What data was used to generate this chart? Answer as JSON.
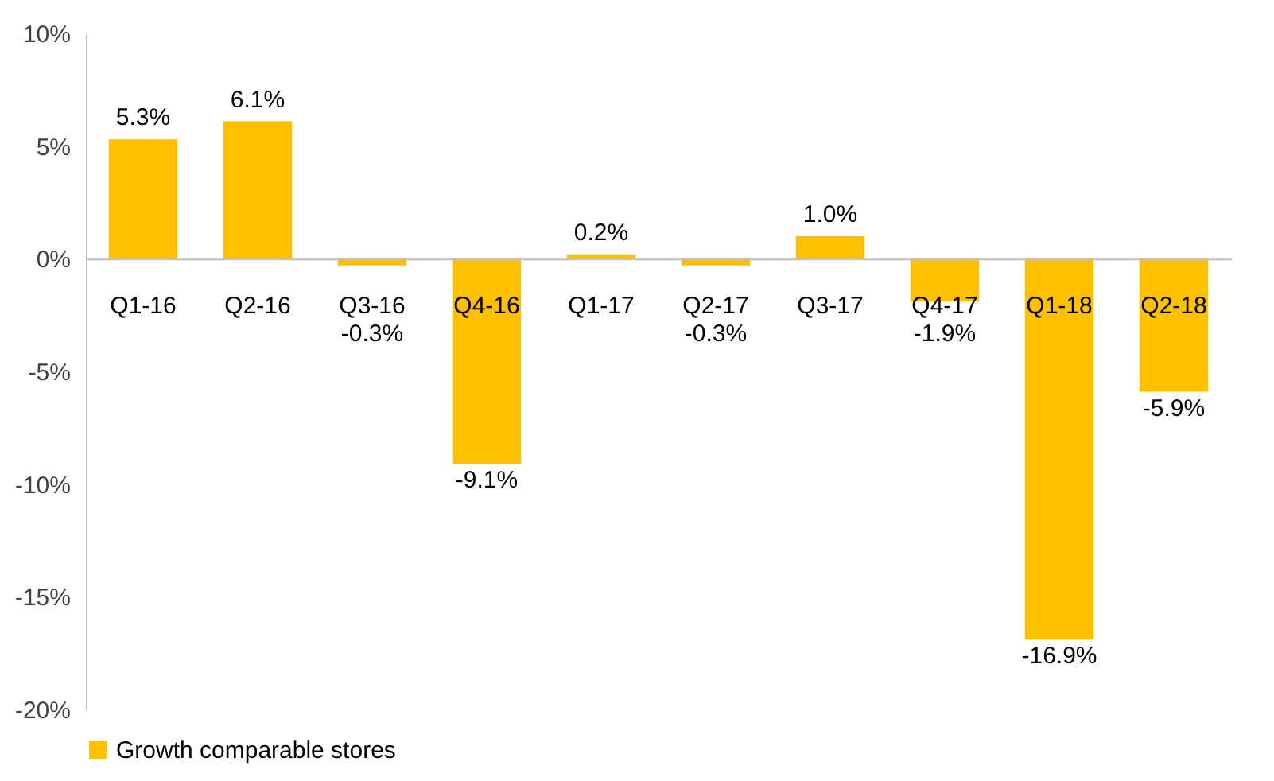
{
  "chart_data": {
    "type": "bar",
    "categories": [
      "Q1-16",
      "Q2-16",
      "Q3-16",
      "Q4-16",
      "Q1-17",
      "Q2-17",
      "Q3-17",
      "Q4-17",
      "Q1-18",
      "Q2-18"
    ],
    "series": [
      {
        "name": "Growth comparable stores",
        "color": "#ffc000",
        "values": [
          5.3,
          6.1,
          -0.3,
          -9.1,
          0.2,
          -0.3,
          1.0,
          -1.9,
          -16.9,
          -5.9
        ],
        "value_labels": [
          "5.3%",
          "6.1%",
          "-0.3%",
          "-9.1%",
          "0.2%",
          "-0.3%",
          "1.0%",
          "-1.9%",
          "-16.9%",
          "-5.9%"
        ]
      }
    ],
    "ylim": [
      -20,
      10
    ],
    "yticks": [
      {
        "value": -20,
        "label": "-20%"
      },
      {
        "value": -15,
        "label": "-15%"
      },
      {
        "value": -10,
        "label": "-10%"
      },
      {
        "value": -5,
        "label": "-5%"
      },
      {
        "value": 0,
        "label": "0%"
      },
      {
        "value": 5,
        "label": "5%"
      },
      {
        "value": 10,
        "label": "10%"
      }
    ],
    "grid": false,
    "legend": "bottom"
  }
}
